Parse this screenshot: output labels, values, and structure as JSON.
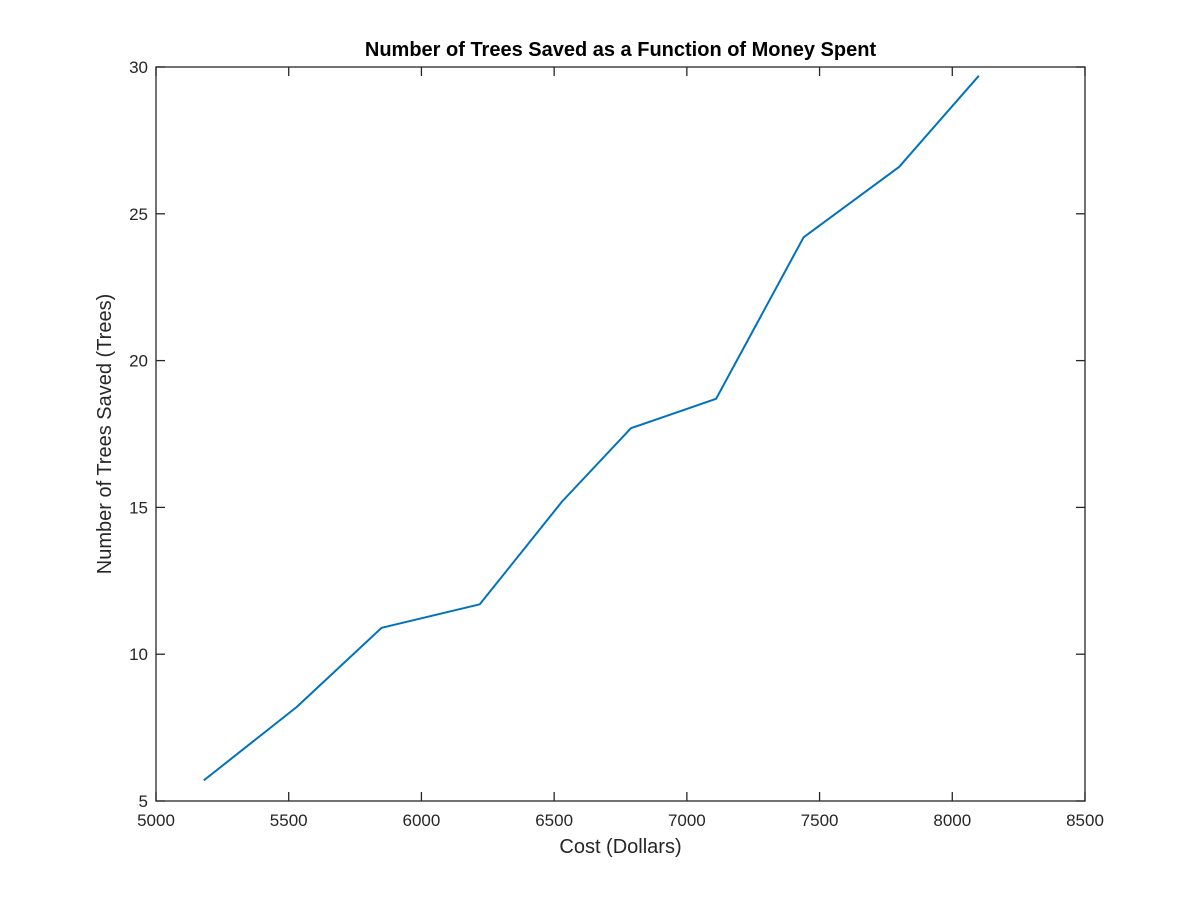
{
  "chart_data": {
    "type": "line",
    "title": "Number of Trees Saved as a Function of Money Spent",
    "xlabel": "Cost (Dollars)",
    "ylabel": "Number of Trees Saved (Trees)",
    "xlim": [
      5000,
      8500
    ],
    "ylim": [
      5,
      30
    ],
    "xticks": [
      5000,
      5500,
      6000,
      6500,
      7000,
      7500,
      8000,
      8500
    ],
    "yticks": [
      5,
      10,
      15,
      20,
      25,
      30
    ],
    "grid": false,
    "legend": "none",
    "series": [
      {
        "color": "#0072BD",
        "x": [
          5180,
          5530,
          5850,
          6220,
          6530,
          6790,
          7110,
          7440,
          7800,
          8100
        ],
        "y": [
          5.7,
          8.2,
          10.9,
          11.7,
          15.2,
          17.7,
          18.7,
          24.2,
          26.6,
          29.7
        ]
      }
    ]
  }
}
